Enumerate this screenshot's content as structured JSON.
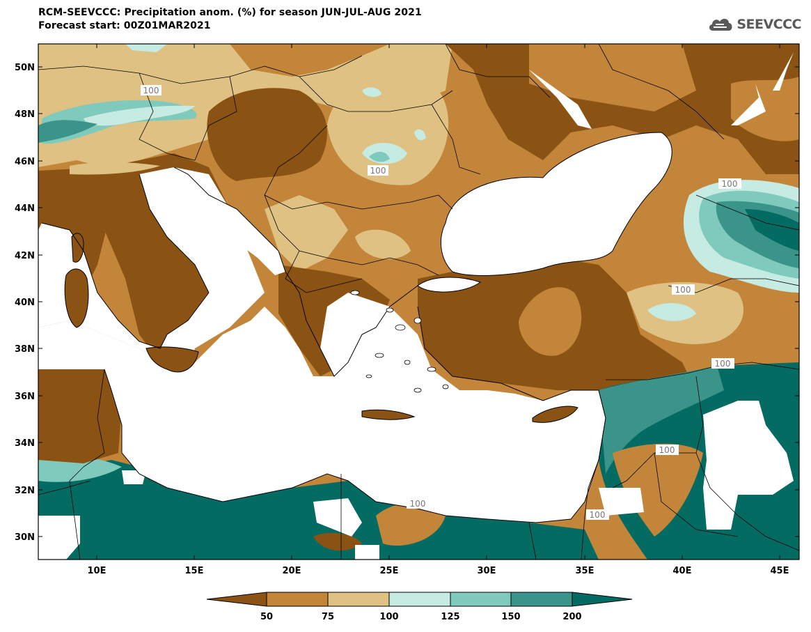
{
  "header": {
    "title_line1": "RCM-SEEVCCC: Precipitation anom. (%) for season JUN-JUL-AUG 2021",
    "title_line2": "Forecast start: 00Z01MAR2021"
  },
  "logo": {
    "text": "SEEVCCC",
    "icon": "cloud-icon"
  },
  "map": {
    "lon_range": [
      7,
      46
    ],
    "lat_range": [
      29,
      51
    ],
    "lat_ticks": [
      "50N",
      "48N",
      "46N",
      "44N",
      "42N",
      "40N",
      "38N",
      "36N",
      "34N",
      "32N",
      "30N"
    ],
    "lon_ticks": [
      "10E",
      "15E",
      "20E",
      "25E",
      "30E",
      "35E",
      "40E",
      "45E"
    ],
    "contour_labels": [
      "100",
      "100",
      "100",
      "100",
      "100",
      "100",
      "100",
      "100"
    ]
  },
  "colorbar": {
    "tick_labels": [
      "50",
      "75",
      "100",
      "125",
      "150",
      "200"
    ],
    "colors": [
      "#8b5313",
      "#c3853a",
      "#dfc283",
      "#c6ebe2",
      "#7fcabd",
      "#3a948a",
      "#046b63"
    ]
  }
}
